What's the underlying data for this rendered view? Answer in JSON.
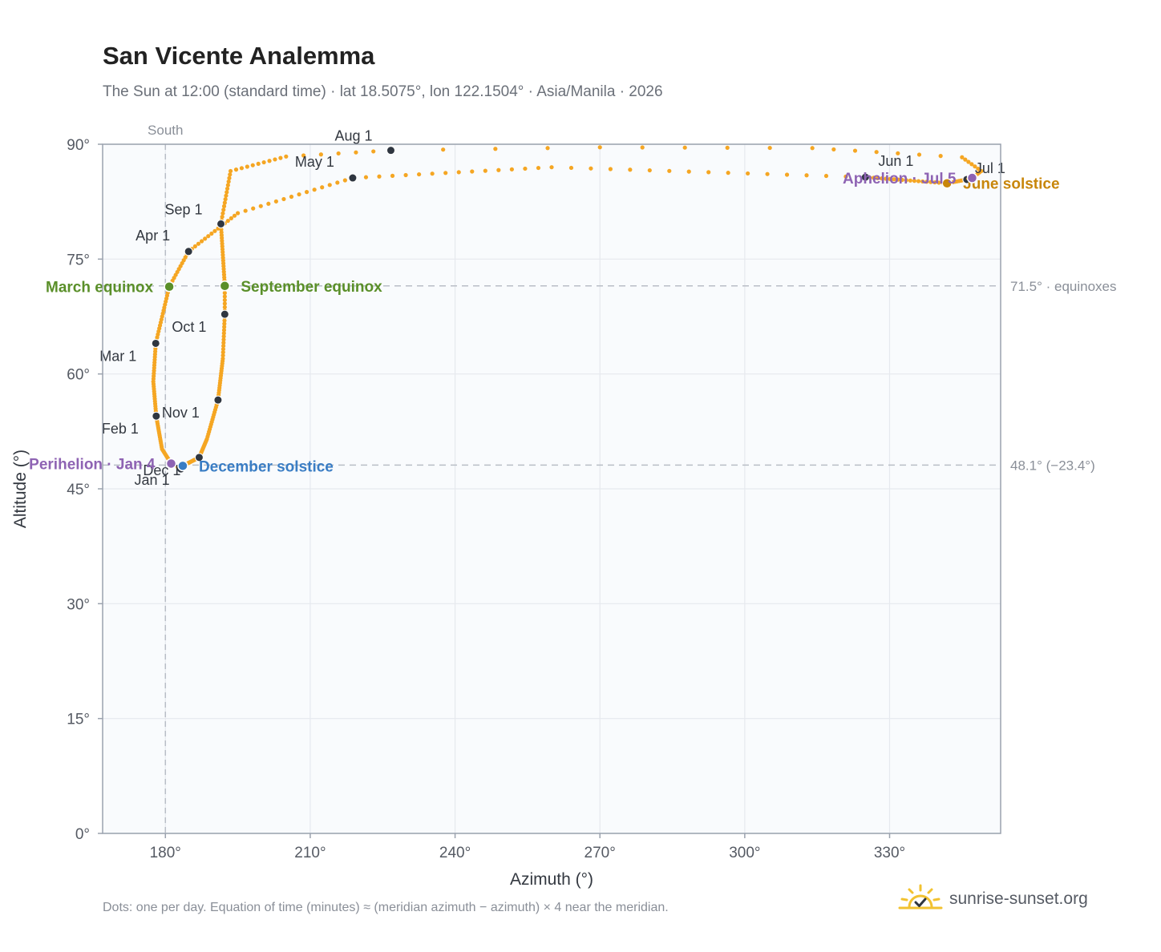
{
  "title": "San Vicente Analemma",
  "subtitle": "The Sun at 12:00 (standard time) · lat 18.5075°, lon 122.1504° · Asia/Manila · 2026",
  "footnote": "Dots: one per day. Equation of time (minutes) ≈ (meridian azimuth − azimuth) × 4 near the meridian.",
  "brand": {
    "name": "sunrise-sunset.org",
    "logo_icon": "sun-checkmark-icon"
  },
  "colors": {
    "path": "#f5a623",
    "month_marker": "#2f3640",
    "equinox": "#5a8f29",
    "june_solstice": "#c8860a",
    "december_solstice": "#3a7dc4",
    "perihelion_aphelion": "#8e63b3",
    "grid": "#e6e9ee",
    "plot_background": "#f9fbfd",
    "reference_line": "#b9bec6"
  },
  "chart_data": {
    "type": "scatter",
    "xlabel": "Azimuth (°)",
    "ylabel": "Altitude (°)",
    "xlim": [
      167,
      353
    ],
    "ylim": [
      0,
      90
    ],
    "xticks": [
      180,
      210,
      240,
      270,
      300,
      330
    ],
    "yticks": [
      0,
      15,
      30,
      45,
      60,
      75,
      90
    ],
    "xtick_format": "{v}°",
    "ytick_format": "{v}°",
    "grid": true,
    "meridian": {
      "azimuth": 180,
      "label": "South"
    },
    "reference_lines": [
      {
        "altitude": 71.5,
        "label": "71.5° · equinoxes"
      },
      {
        "altitude": 48.1,
        "label": "48.1° (−23.4°)"
      }
    ],
    "month_markers": [
      {
        "label": "Jan 1",
        "az": 183.2,
        "alt": 47.6
      },
      {
        "label": "Feb 1",
        "az": 178.1,
        "alt": 54.5
      },
      {
        "label": "Mar 1",
        "az": 178.0,
        "alt": 64.0
      },
      {
        "label": "Apr 1",
        "az": 184.8,
        "alt": 76.0
      },
      {
        "label": "May 1",
        "az": 218.8,
        "alt": 85.6
      },
      {
        "label": "Jun 1",
        "az": 325.0,
        "alt": 85.7
      },
      {
        "label": "Jul 1",
        "az": 346.0,
        "alt": 85.4
      },
      {
        "label": "Aug 1",
        "az": 226.7,
        "alt": 89.2
      },
      {
        "label": "Sep 1",
        "az": 191.5,
        "alt": 79.6
      },
      {
        "label": "Oct 1",
        "az": 192.3,
        "alt": 67.8
      },
      {
        "label": "Nov 1",
        "az": 190.9,
        "alt": 56.6
      },
      {
        "label": "Dec 1",
        "az": 187.0,
        "alt": 49.1
      }
    ],
    "events": [
      {
        "label": "March equinox",
        "az": 180.8,
        "alt": 71.4,
        "color_key": "equinox",
        "side": "left"
      },
      {
        "label": "September equinox",
        "az": 192.3,
        "alt": 71.5,
        "color_key": "equinox",
        "side": "right"
      },
      {
        "label": "June solstice",
        "az": 341.9,
        "alt": 84.9,
        "color_key": "june_solstice",
        "side": "right"
      },
      {
        "label": "December solstice",
        "az": 183.6,
        "alt": 48.0,
        "color_key": "december_solstice",
        "side": "right"
      },
      {
        "label": "Perihelion · Jan 4",
        "az": 181.2,
        "alt": 48.3,
        "color_key": "perihelion_aphelion",
        "side": "left"
      },
      {
        "label": "Aphelion · Jul 5",
        "az": 347.1,
        "alt": 85.6,
        "color_key": "perihelion_aphelion",
        "side": "left"
      }
    ],
    "series": [
      {
        "name": "",
        "anchors": [
          {
            "day": 0,
            "az": 183.2,
            "alt": 47.6
          },
          {
            "day": 3,
            "az": 181.2,
            "alt": 48.3
          },
          {
            "day": 14,
            "az": 179.3,
            "alt": 50.2
          },
          {
            "day": 31,
            "az": 178.1,
            "alt": 54.5
          },
          {
            "day": 45,
            "az": 177.5,
            "alt": 59.0
          },
          {
            "day": 59,
            "az": 178.0,
            "alt": 64.0
          },
          {
            "day": 78,
            "az": 180.8,
            "alt": 71.4
          },
          {
            "day": 90,
            "az": 184.8,
            "alt": 76.0
          },
          {
            "day": 105,
            "az": 195.0,
            "alt": 81.0
          },
          {
            "day": 120,
            "az": 218.8,
            "alt": 85.6
          },
          {
            "day": 135,
            "az": 260.0,
            "alt": 87.0
          },
          {
            "day": 151,
            "az": 325.0,
            "alt": 85.7
          },
          {
            "day": 171,
            "az": 341.9,
            "alt": 84.9
          },
          {
            "day": 181,
            "az": 346.0,
            "alt": 85.4
          },
          {
            "day": 185,
            "az": 347.1,
            "alt": 85.6
          },
          {
            "day": 190,
            "az": 349.0,
            "alt": 86.5
          },
          {
            "day": 196,
            "az": 345.0,
            "alt": 88.3
          },
          {
            "day": 203,
            "az": 314.0,
            "alt": 89.5
          },
          {
            "day": 208,
            "az": 270.0,
            "alt": 89.6
          },
          {
            "day": 212,
            "az": 226.7,
            "alt": 89.2
          },
          {
            "day": 218,
            "az": 205.0,
            "alt": 88.4
          },
          {
            "day": 228,
            "az": 193.5,
            "alt": 86.5
          },
          {
            "day": 243,
            "az": 191.5,
            "alt": 79.6
          },
          {
            "day": 265,
            "az": 192.3,
            "alt": 71.5
          },
          {
            "day": 273,
            "az": 192.3,
            "alt": 67.8
          },
          {
            "day": 287,
            "az": 191.9,
            "alt": 62.0
          },
          {
            "day": 304,
            "az": 190.9,
            "alt": 56.6
          },
          {
            "day": 320,
            "az": 188.6,
            "alt": 51.5
          },
          {
            "day": 334,
            "az": 187.0,
            "alt": 49.1
          },
          {
            "day": 354,
            "az": 183.6,
            "alt": 48.0
          },
          {
            "day": 365,
            "az": 183.2,
            "alt": 47.6
          }
        ]
      }
    ]
  }
}
